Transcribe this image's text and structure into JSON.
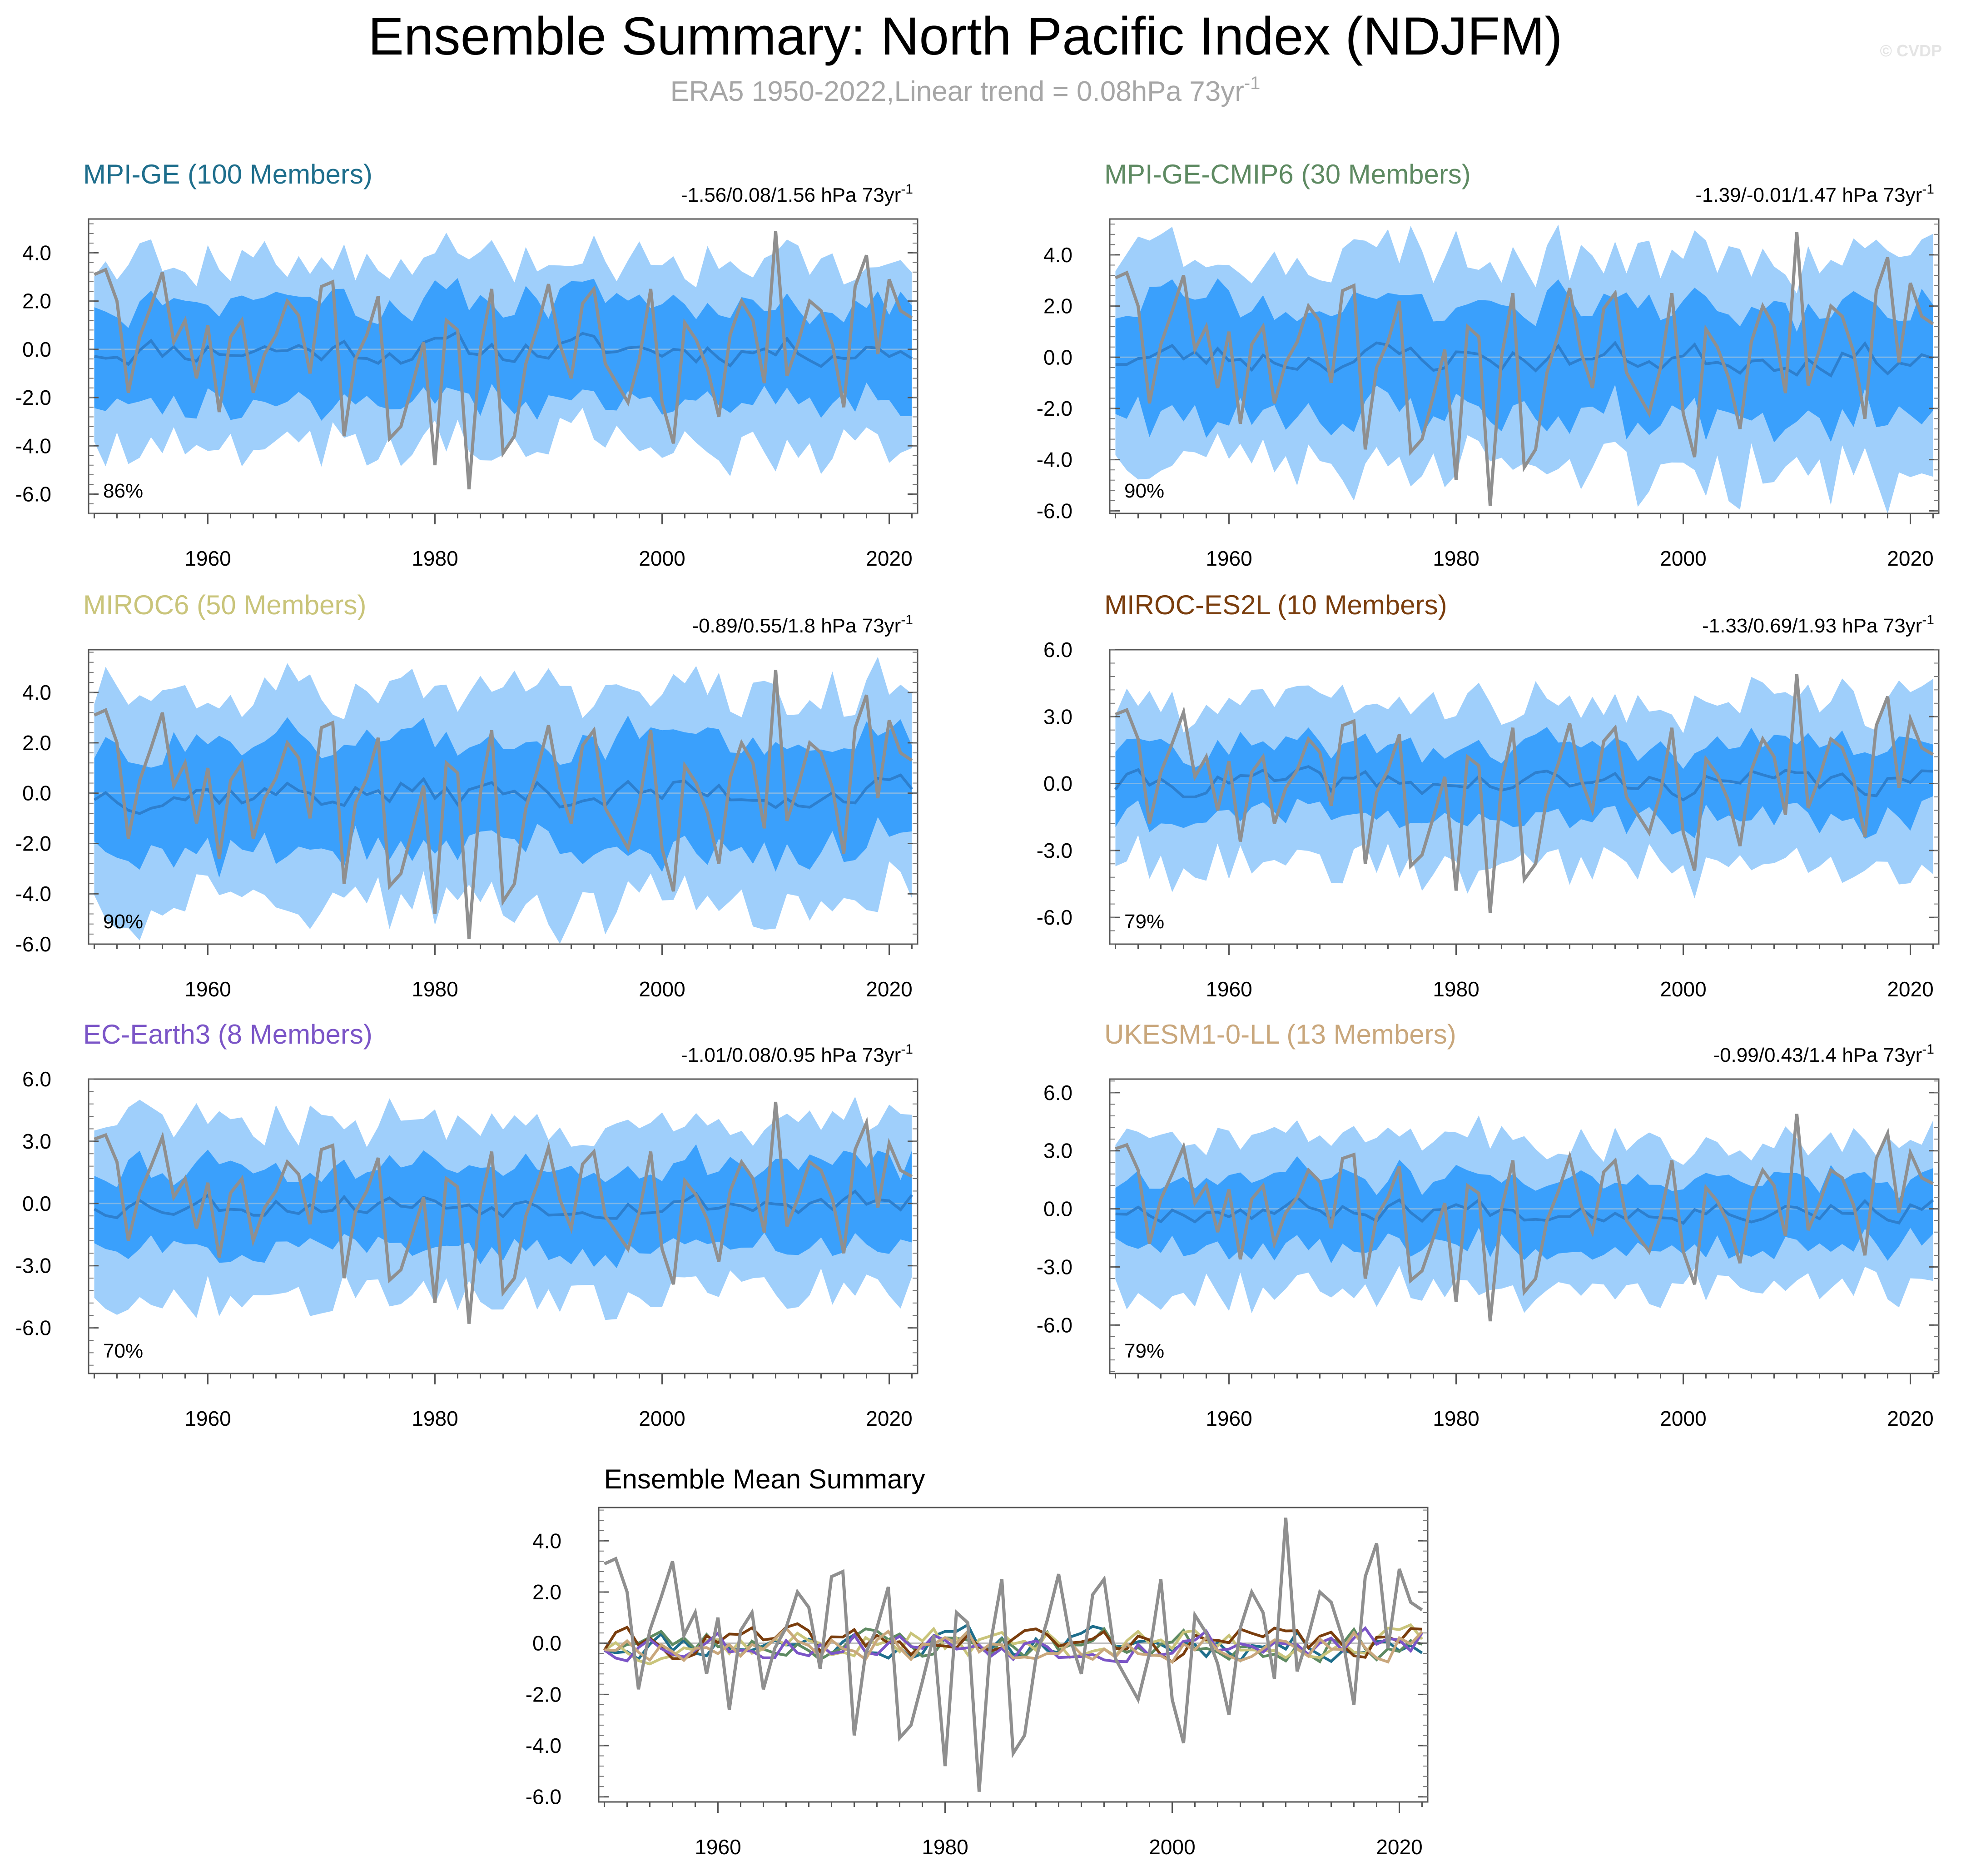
{
  "title": "Ensemble Summary: North Pacific Index (NDJFM)",
  "subtitle": "ERA5 1950-2022,Linear trend = 0.08hPa 73yr",
  "subtitle_sup": "-1",
  "credit": "© CVDP",
  "trend_unit": " hPa 73yr",
  "trend_sup": "-1",
  "colors": {
    "inner_band": "#3aa0fc",
    "outer_band": "#9fcffb",
    "ensemble_mean": "#2d7fce",
    "observations": "#8f8f8f"
  },
  "chart_data": [
    {
      "type": "area",
      "title": "MPI-GE (100 Members)",
      "title_color": "#1e6e8c",
      "trend": "-1.56/0.08/1.56",
      "percent": "86%",
      "ylim": [
        -6.8,
        5.4
      ],
      "yticks": [
        "4.0",
        "2.0",
        "0.0",
        "-2.0",
        "-4.0",
        "-6.0"
      ],
      "ytick_values": [
        4,
        2,
        0,
        -2,
        -4,
        -6
      ],
      "xticks": [
        "1960",
        "1980",
        "2000",
        "2020"
      ],
      "xlim": [
        1949.5,
        2022.5
      ],
      "inner_halfwidth": 2.1,
      "outer_halfwidth": 3.6,
      "seed": 11
    },
    {
      "type": "area",
      "title": "MPI-GE-CMIP6 (30 Members)",
      "title_color": "#5e8a62",
      "trend": "-1.39/-0.01/1.47",
      "percent": "90%",
      "ylim": [
        -6.1,
        5.4
      ],
      "yticks": [
        "4.0",
        "2.0",
        "0.0",
        "-2.0",
        "-4.0",
        "-6.0"
      ],
      "ytick_values": [
        4,
        2,
        0,
        -2,
        -4,
        -6
      ],
      "xticks": [
        "1960",
        "1980",
        "2000",
        "2020"
      ],
      "xlim": [
        1949.5,
        2022.5
      ],
      "inner_halfwidth": 2.3,
      "outer_halfwidth": 3.9,
      "seed": 23
    },
    {
      "type": "area",
      "title": "MIROC6 (50 Members)",
      "title_color": "#c9c47a",
      "trend": "-0.89/0.55/1.8",
      "percent": "90%",
      "ylim": [
        -6.0,
        5.7
      ],
      "yticks": [
        "4.0",
        "2.0",
        "0.0",
        "-2.0",
        "-4.0",
        "-6.0"
      ],
      "ytick_values": [
        4,
        2,
        0,
        -2,
        -4,
        -6
      ],
      "xticks": [
        "1960",
        "1980",
        "2000",
        "2020"
      ],
      "xlim": [
        1949.5,
        2022.5
      ],
      "inner_halfwidth": 2.3,
      "outer_halfwidth": 4.0,
      "seed": 37
    },
    {
      "type": "area",
      "title": "MIROC-ES2L (10 Members)",
      "title_color": "#7a3d0d",
      "trend": "-1.33/0.69/1.93",
      "percent": "79%",
      "ylim": [
        -7.2,
        6.0
      ],
      "yticks": [
        "6.0",
        "3.0",
        "0.0",
        "-3.0",
        "-6.0"
      ],
      "ytick_values": [
        6,
        3,
        0,
        -3,
        -6
      ],
      "xticks": [
        "1960",
        "1980",
        "2000",
        "2020"
      ],
      "xlim": [
        1949.5,
        2022.5
      ],
      "inner_halfwidth": 1.7,
      "outer_halfwidth": 3.5,
      "seed": 41
    },
    {
      "type": "area",
      "title": "EC-Earth3 (8 Members)",
      "title_color": "#7b55c7",
      "trend": "-1.01/0.08/0.95",
      "percent": "70%",
      "ylim": [
        -8.2,
        6.0
      ],
      "yticks": [
        "6.0",
        "3.0",
        "0.0",
        "-3.0",
        "-6.0"
      ],
      "ytick_values": [
        6,
        3,
        0,
        -3,
        -6
      ],
      "xticks": [
        "1960",
        "1980",
        "2000",
        "2020"
      ],
      "xlim": [
        1949.5,
        2022.5
      ],
      "inner_halfwidth": 2.0,
      "outer_halfwidth": 3.9,
      "seed": 53
    },
    {
      "type": "area",
      "title": "UKESM1-0-LL (13 Members)",
      "title_color": "#c9a77c",
      "trend": "-0.99/0.43/1.4",
      "percent": "79%",
      "ylim": [
        -8.5,
        6.7
      ],
      "yticks": [
        "6.0",
        "3.0",
        "0.0",
        "-3.0",
        "-6.0"
      ],
      "ytick_values": [
        6,
        3,
        0,
        -3,
        -6
      ],
      "xticks": [
        "1960",
        "1980",
        "2000",
        "2020"
      ],
      "xlim": [
        1949.5,
        2022.5
      ],
      "inner_halfwidth": 1.8,
      "outer_halfwidth": 3.6,
      "seed": 67
    },
    {
      "type": "line",
      "title": "Ensemble Mean Summary",
      "title_color": "#000000",
      "ylim": [
        -6.2,
        5.3
      ],
      "yticks": [
        "4.0",
        "2.0",
        "0.0",
        "-2.0",
        "-4.0",
        "-6.0"
      ],
      "ytick_values": [
        4,
        2,
        0,
        -2,
        -4,
        -6
      ],
      "xticks": [
        "1960",
        "1980",
        "2000",
        "2020"
      ],
      "xlim": [
        1949.5,
        2022.5
      ],
      "series_colors": [
        "#1e6e8c",
        "#5e8a62",
        "#c9c47a",
        "#7a3d0d",
        "#7b55c7",
        "#c9a77c"
      ]
    }
  ],
  "observations": {
    "name": "ERA5",
    "x_start": 1950,
    "values": [
      3.1,
      3.3,
      2.0,
      -1.8,
      0.5,
      1.8,
      3.2,
      0.3,
      1.2,
      -1.2,
      1.0,
      -2.6,
      0.5,
      1.2,
      -1.8,
      -0.2,
      0.6,
      2.0,
      1.4,
      -1.0,
      2.6,
      2.8,
      -3.6,
      -0.4,
      0.6,
      2.2,
      -3.7,
      -3.2,
      -1.5,
      0.3,
      -4.8,
      1.2,
      0.8,
      -5.8,
      0.0,
      2.5,
      -4.3,
      -3.6,
      -0.6,
      0.9,
      2.7,
      0.2,
      -1.2,
      1.9,
      2.5,
      -0.6,
      -1.4,
      -2.2,
      -0.4,
      2.5,
      -2.2,
      -3.9,
      1.1,
      0.4,
      -0.8,
      -2.8,
      0.6,
      2.0,
      1.2,
      -1.4,
      4.9,
      -1.1,
      0.3,
      2.0,
      1.6,
      0.2,
      -2.4,
      2.6,
      3.9,
      -0.2,
      2.9,
      1.6,
      1.3
    ]
  }
}
